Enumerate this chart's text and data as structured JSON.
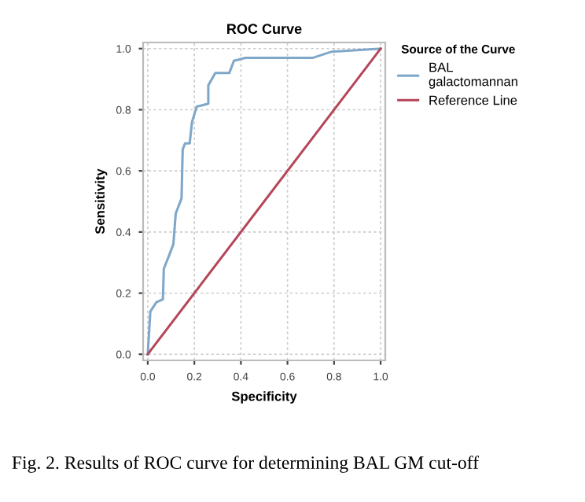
{
  "chart_data": {
    "type": "line",
    "title": "ROC Curve",
    "xlabel": "Specificity",
    "ylabel": "Sensitivity",
    "legend_title": "Source of the Curve",
    "series": [
      {
        "name": "BAL\ngalactomannan",
        "color": "#7fa7c9",
        "x": [
          0,
          0.011,
          0.037,
          0.065,
          0.069,
          0.09,
          0.11,
          0.12,
          0.145,
          0.15,
          0.16,
          0.18,
          0.19,
          0.21,
          0.26,
          0.26,
          0.29,
          0.35,
          0.37,
          0.42,
          0.71,
          0.79,
          1
        ],
        "values": [
          0,
          0.14,
          0.17,
          0.18,
          0.28,
          0.32,
          0.36,
          0.46,
          0.51,
          0.67,
          0.69,
          0.69,
          0.76,
          0.81,
          0.82,
          0.88,
          0.92,
          0.92,
          0.96,
          0.97,
          0.97,
          0.99,
          1
        ]
      },
      {
        "name": "Reference Line",
        "color": "#b5475a",
        "x": [
          0,
          1
        ],
        "values": [
          0,
          1
        ]
      }
    ],
    "xlim": [
      -0.02,
      1.02
    ],
    "ylim": [
      -0.02,
      1.02
    ],
    "xticks": [
      {
        "value": 0,
        "label": "0.0"
      },
      {
        "value": 0.2,
        "label": "0.2"
      },
      {
        "value": 0.4,
        "label": "0.4"
      },
      {
        "value": 0.6,
        "label": "0.6"
      },
      {
        "value": 0.8,
        "label": "0.8"
      },
      {
        "value": 1,
        "label": "1.0"
      }
    ],
    "yticks": [
      {
        "value": 0,
        "label": "0.0"
      },
      {
        "value": 0.2,
        "label": "0.2"
      },
      {
        "value": 0.4,
        "label": "0.4"
      },
      {
        "value": 0.6,
        "label": "0.6"
      },
      {
        "value": 0.8,
        "label": "0.8"
      },
      {
        "value": 1,
        "label": "1.0"
      }
    ],
    "grid": true,
    "legend": "top right",
    "line_style": "solid",
    "marker": "none",
    "annotations": [
      "Fig. 2. Results of ROC curve for determining BAL GM cut-off"
    ]
  }
}
